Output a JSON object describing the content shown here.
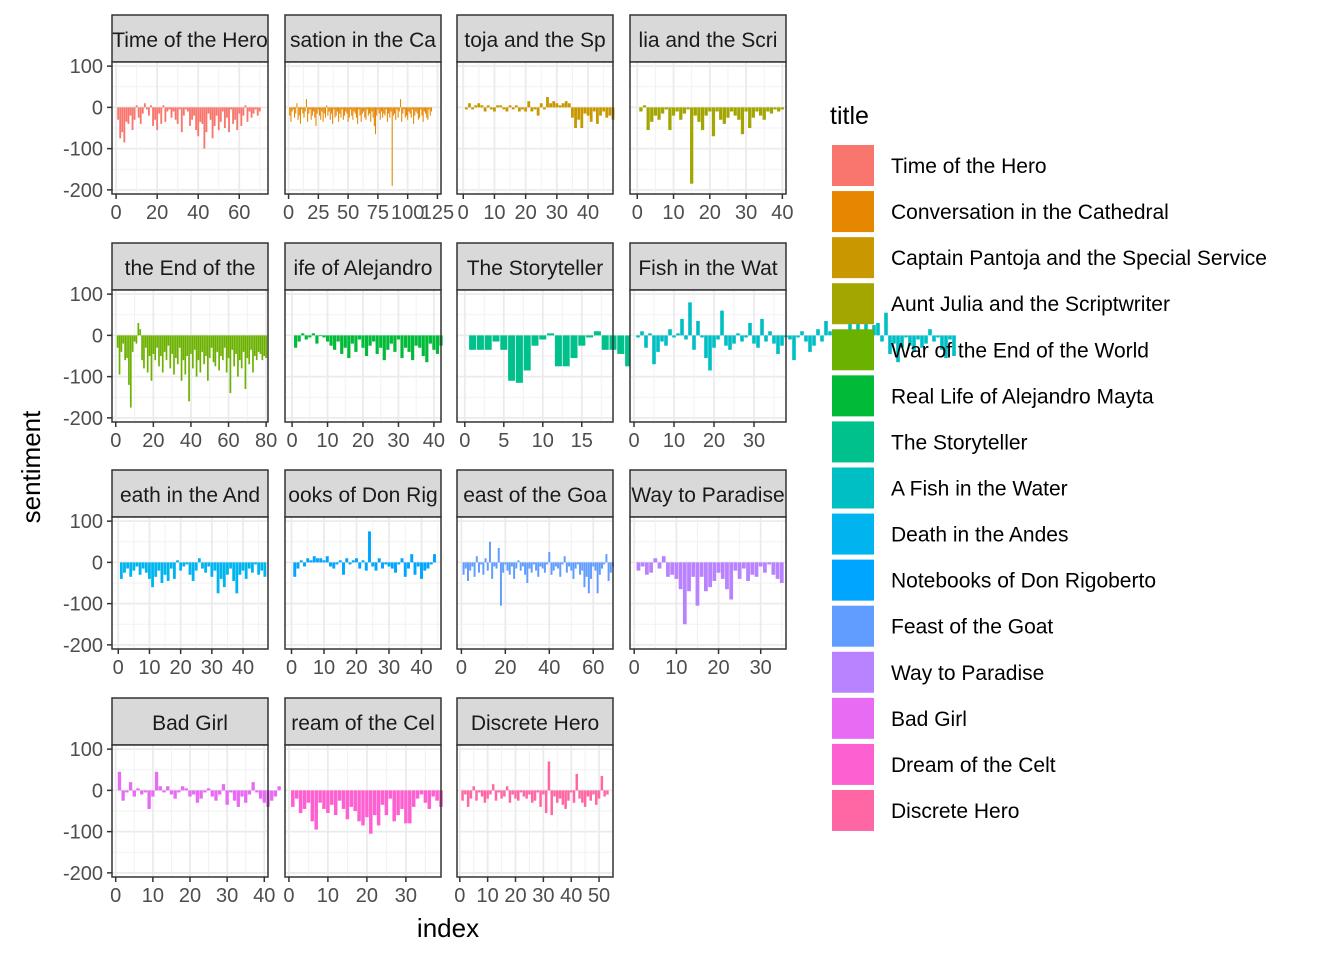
{
  "chart_data": {
    "type": "bar",
    "facet_layout": "wrap 4 columns",
    "xlabel": "index",
    "ylabel": "sentiment",
    "ylim": [
      -210,
      110
    ],
    "yticks": [
      100,
      0,
      -100,
      -200
    ],
    "grid": true,
    "legend": {
      "title": "title",
      "placement": "right"
    },
    "panels": [
      {
        "title": "Time of the Hero",
        "strip_label": "Time of the Hero",
        "color": "#F8766D",
        "xlim": [
          -2,
          74
        ],
        "xticks": [
          0,
          20,
          40,
          60
        ],
        "values": [
          -30,
          -75,
          -60,
          -85,
          -35,
          -40,
          -20,
          -55,
          -30,
          5,
          -25,
          -40,
          -15,
          10,
          -5,
          -20,
          5,
          -45,
          -30,
          -55,
          -15,
          -40,
          5,
          -35,
          -10,
          -5,
          -25,
          -10,
          -30,
          -40,
          -5,
          -60,
          -20,
          -5,
          -10,
          -45,
          -30,
          -20,
          -55,
          -70,
          -35,
          -40,
          -100,
          -60,
          -15,
          -30,
          -75,
          -45,
          -20,
          -55,
          -35,
          -10,
          -50,
          -25,
          -60,
          -5,
          -40,
          -30,
          -55,
          -15,
          -45,
          -20,
          5,
          -35,
          -10,
          -25,
          -15,
          -5,
          -20,
          -10
        ]
      },
      {
        "title": "Conversation in the Cathedral",
        "strip_label": "sation in the Ca",
        "color": "#E58700",
        "xlim": [
          -3,
          128
        ],
        "xticks": [
          0,
          25,
          50,
          75,
          100,
          125
        ],
        "values": [
          -20,
          -35,
          -10,
          -5,
          -25,
          -15,
          10,
          -30,
          -20,
          -40,
          -5,
          -15,
          -25,
          -10,
          20,
          -35,
          -15,
          -5,
          -30,
          -20,
          -10,
          -25,
          -45,
          -15,
          -5,
          -20,
          -30,
          -10,
          -35,
          -15,
          -25,
          5,
          -20,
          -10,
          -30,
          -15,
          -40,
          -5,
          -25,
          -20,
          -10,
          -35,
          -15,
          -25,
          -5,
          -30,
          -20,
          -10,
          -15,
          -35,
          -25,
          -5,
          -20,
          -30,
          -10,
          -15,
          -25,
          -40,
          -5,
          -20,
          -35,
          -15,
          -10,
          -25,
          -30,
          -5,
          -20,
          -15,
          -35,
          -10,
          -25,
          -45,
          -65,
          -20,
          -5,
          -15,
          -30,
          -10,
          -25,
          -15,
          -20,
          -5,
          -35,
          -15,
          -25,
          -10,
          -190,
          -20,
          -15,
          -30,
          -5,
          -25,
          -10,
          20,
          -35,
          -15,
          -5,
          -25,
          -20,
          -30,
          -10,
          -15,
          -25,
          -5,
          -40,
          -20,
          -10,
          -15,
          -30,
          -25,
          -5,
          -20,
          -35,
          -10,
          -15,
          -25,
          -30,
          -5,
          -20,
          -10
        ]
      },
      {
        "title": "Captain Pantoja and the Special Service",
        "strip_label": "toja and the Sp",
        "color": "#C99800",
        "xlim": [
          -2,
          48
        ],
        "xticks": [
          0,
          10,
          20,
          30,
          40
        ],
        "values": [
          -5,
          10,
          -5,
          5,
          10,
          5,
          -10,
          5,
          -5,
          -10,
          5,
          5,
          -5,
          -10,
          5,
          -5,
          5,
          -10,
          -5,
          -10,
          15,
          -10,
          -5,
          -20,
          10,
          -5,
          25,
          10,
          15,
          10,
          5,
          10,
          15,
          10,
          -25,
          -50,
          -30,
          -50,
          -15,
          -20,
          -35,
          -10,
          -40,
          -20,
          -10,
          -25,
          -20,
          -30
        ]
      },
      {
        "title": "Aunt Julia and the Scriptwriter",
        "strip_label": "lia and the Scri",
        "color": "#A3A500",
        "xlim": [
          -2,
          41
        ],
        "xticks": [
          0,
          10,
          20,
          30,
          40
        ],
        "values": [
          -10,
          5,
          -55,
          -35,
          -20,
          -30,
          -15,
          -5,
          -55,
          -20,
          -10,
          -30,
          -15,
          -5,
          -185,
          -20,
          -35,
          -55,
          -20,
          -10,
          -70,
          -10,
          -30,
          -40,
          -25,
          -10,
          -20,
          -30,
          -65,
          -10,
          -50,
          -25,
          -10,
          -20,
          -30,
          -10,
          -15,
          -5,
          -10,
          -5
        ]
      },
      {
        "title": "War of the End of the World",
        "strip_label": " the End of the",
        "color": "#6BB100",
        "xlim": [
          -2,
          81
        ],
        "xticks": [
          0,
          20,
          40,
          60,
          80
        ],
        "values": [
          -30,
          -95,
          -40,
          -20,
          -60,
          -55,
          -120,
          -175,
          -40,
          -15,
          -20,
          30,
          15,
          -60,
          -80,
          -30,
          -90,
          -50,
          -110,
          -45,
          -60,
          -30,
          -75,
          -50,
          -90,
          -40,
          -60,
          -25,
          -80,
          -45,
          -95,
          -55,
          -70,
          -30,
          -110,
          -60,
          -95,
          -50,
          -160,
          -45,
          -80,
          -35,
          -100,
          -60,
          -90,
          -40,
          -70,
          -50,
          -110,
          -55,
          -30,
          -65,
          -75,
          -40,
          -85,
          -50,
          -60,
          -30,
          -90,
          -55,
          -140,
          -35,
          -75,
          -45,
          -100,
          -60,
          -80,
          -40,
          -130,
          -55,
          -70,
          -35,
          -90,
          -50,
          -60,
          -40,
          -45,
          -60,
          -50,
          -55
        ]
      },
      {
        "title": "Real Life of Alejandro Mayta",
        "strip_label": "ife of Alejandro",
        "color": "#00BA38",
        "xlim": [
          -2,
          42
        ],
        "xticks": [
          0,
          10,
          20,
          30,
          40
        ],
        "values": [
          -30,
          -15,
          5,
          -10,
          -5,
          5,
          -20,
          0,
          -5,
          -15,
          -25,
          -35,
          -15,
          -45,
          -30,
          -55,
          -20,
          -40,
          -10,
          -30,
          -50,
          -25,
          -15,
          -45,
          -30,
          -60,
          -35,
          -20,
          -40,
          -10,
          -55,
          -30,
          -40,
          -60,
          -25,
          -30,
          -50,
          -65,
          -20,
          -35,
          -45,
          -25
        ]
      },
      {
        "title": "The Storyteller",
        "strip_label": "The Storyteller",
        "color": "#00C08B",
        "xlim": [
          -1,
          19
        ],
        "xticks": [
          0,
          5,
          10,
          15
        ],
        "values": [
          -35,
          -35,
          -35,
          -15,
          -35,
          -110,
          -115,
          -85,
          -25,
          -10,
          5,
          -75,
          -75,
          -55,
          -25,
          -5,
          10,
          -35,
          -35,
          -45,
          -75,
          -115,
          -55,
          -10
        ]
      },
      {
        "title": "A Fish in the Water",
        "strip_label": "Fish in the Wat",
        "color": "#00BFC4",
        "xlim": [
          -1,
          38
        ],
        "xticks": [
          0,
          10,
          20,
          30
        ],
        "values": [
          -5,
          10,
          -30,
          5,
          -70,
          -40,
          -15,
          -25,
          15,
          -5,
          5,
          40,
          -10,
          80,
          -35,
          35,
          -5,
          -55,
          -85,
          -30,
          -10,
          60,
          -25,
          -35,
          -20,
          5,
          -15,
          -5,
          30,
          -20,
          -30,
          40,
          -15,
          10,
          -20,
          -45,
          -25,
          -5,
          -10,
          -60,
          -5,
          10,
          -15,
          -40,
          -25,
          15,
          -15,
          35,
          10,
          -55,
          -25,
          -40,
          -5,
          85,
          -20,
          35,
          -10,
          65,
          -15,
          25,
          30,
          -15,
          55,
          -45,
          -20,
          -65,
          -30,
          -5,
          -25,
          -40,
          -10,
          -30,
          -20,
          15,
          -15,
          -5,
          -35,
          -55,
          -10,
          -50
        ]
      },
      {
        "title": "Death in the Andes",
        "strip_label": "eath in the And",
        "color": "#00B4EF",
        "xlim": [
          -2,
          48
        ],
        "xticks": [
          0,
          10,
          20,
          30,
          40
        ],
        "values": [
          -40,
          -25,
          -15,
          -35,
          -20,
          -10,
          -30,
          -15,
          -25,
          -40,
          -60,
          -35,
          -20,
          -50,
          -30,
          -45,
          -15,
          -40,
          5,
          -20,
          -10,
          -5,
          -30,
          -45,
          -20,
          10,
          -15,
          -25,
          -10,
          -35,
          -20,
          -75,
          -40,
          -60,
          -30,
          -15,
          -45,
          -75,
          -30,
          -20,
          -40,
          -15,
          -25,
          -5,
          -30,
          -20,
          -35
        ]
      },
      {
        "title": "Notebooks of Don Rigoberto",
        "strip_label": "ooks of Don Rig",
        "color": "#00A5FF",
        "xlim": [
          -2,
          46
        ],
        "xticks": [
          0,
          10,
          20,
          30,
          40
        ],
        "values": [
          -35,
          -15,
          5,
          -10,
          10,
          5,
          15,
          10,
          10,
          5,
          15,
          -10,
          -15,
          -5,
          5,
          -30,
          10,
          -5,
          5,
          10,
          -15,
          5,
          -20,
          75,
          -10,
          -20,
          10,
          -15,
          -5,
          -10,
          -15,
          -25,
          -5,
          10,
          -35,
          -15,
          20,
          -30,
          -10,
          -40,
          -20,
          -15,
          -5,
          20
        ]
      },
      {
        "title": "Feast of the Goat",
        "strip_label": "east of the Goa",
        "color": "#619CFF",
        "xlim": [
          -2,
          69
        ],
        "xticks": [
          0,
          20,
          40,
          60
        ],
        "values": [
          -30,
          -15,
          -45,
          -20,
          -10,
          -35,
          15,
          -25,
          -5,
          -30,
          10,
          -20,
          50,
          -40,
          -10,
          -15,
          35,
          -105,
          -25,
          -5,
          -20,
          -30,
          -10,
          -40,
          -15,
          5,
          -20,
          -10,
          -30,
          -50,
          -15,
          -25,
          -5,
          -20,
          -35,
          -10,
          -15,
          -25,
          -5,
          25,
          -30,
          -20,
          -10,
          -15,
          -35,
          -5,
          15,
          -25,
          -10,
          -20,
          -40,
          -15,
          -5,
          -30,
          -20,
          -60,
          -35,
          -75,
          -40,
          -10,
          -20,
          -75,
          -30,
          -15,
          -5,
          20,
          -45,
          -25,
          -10
        ]
      },
      {
        "title": "Way to Paradise",
        "strip_label": "Way to Paradise",
        "color": "#B983FF",
        "xlim": [
          -1,
          36
        ],
        "xticks": [
          0,
          10,
          20,
          30
        ],
        "values": [
          -20,
          -10,
          -30,
          -25,
          10,
          -15,
          15,
          -35,
          -30,
          -40,
          -65,
          -150,
          -70,
          -35,
          -105,
          -35,
          -70,
          -60,
          -45,
          -25,
          -40,
          -65,
          -90,
          -20,
          -40,
          -15,
          -45,
          -30,
          -35,
          -10,
          -25,
          -5,
          -30,
          -40,
          -50
        ]
      },
      {
        "title": "Bad Girl",
        "strip_label": "Bad Girl",
        "color": "#E76BF3",
        "xlim": [
          -1,
          41
        ],
        "xticks": [
          0,
          10,
          20,
          30,
          40
        ],
        "values": [
          45,
          -25,
          -5,
          20,
          -15,
          5,
          -10,
          -5,
          -45,
          -15,
          45,
          10,
          -5,
          10,
          -10,
          -20,
          -5,
          10,
          5,
          -15,
          -10,
          -30,
          -20,
          -5,
          5,
          -15,
          -25,
          -10,
          15,
          -35,
          -5,
          -25,
          -40,
          -15,
          -30,
          -10,
          20,
          -5,
          -20,
          -30,
          -40,
          -25,
          -15,
          10
        ]
      },
      {
        "title": "Dream of the Celt",
        "strip_label": "ream of the Cel",
        "color": "#FD61D1",
        "xlim": [
          -1,
          39
        ],
        "xticks": [
          0,
          10,
          20,
          30
        ],
        "values": [
          -40,
          -20,
          -55,
          -45,
          -30,
          -75,
          -95,
          -30,
          -45,
          -55,
          -35,
          -60,
          -25,
          -45,
          -70,
          -40,
          -50,
          -75,
          -85,
          -65,
          -105,
          -60,
          -85,
          -35,
          -60,
          -20,
          -75,
          -60,
          -45,
          -80,
          -80,
          -40,
          -20,
          -10,
          -30,
          -45,
          -15,
          -25,
          -40
        ]
      },
      {
        "title": "Discrete Hero",
        "strip_label": "Discrete Hero",
        "color": "#FF67A4",
        "xlim": [
          -1,
          55
        ],
        "xticks": [
          0,
          10,
          20,
          30,
          40,
          50
        ],
        "values": [
          -25,
          -10,
          -40,
          -20,
          10,
          -25,
          -5,
          -15,
          -30,
          -20,
          -10,
          15,
          -25,
          -5,
          -20,
          -15,
          10,
          -30,
          -10,
          -20,
          -25,
          -5,
          -15,
          -20,
          -10,
          -30,
          -25,
          -5,
          -40,
          -10,
          -55,
          70,
          -60,
          -15,
          -30,
          -20,
          -35,
          -45,
          -25,
          -5,
          -30,
          40,
          -20,
          -30,
          -40,
          -15,
          -25,
          -10,
          -35,
          -20,
          35,
          -15,
          -10
        ]
      }
    ]
  }
}
